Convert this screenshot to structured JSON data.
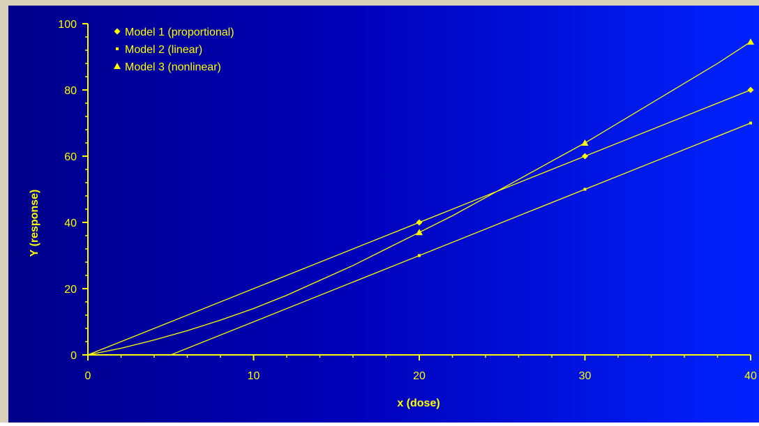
{
  "colors": {
    "line": "#ffff00",
    "background_left": "#00008a",
    "background_right": "#0022ff",
    "frame": "#d8d0b8"
  },
  "chart_data": {
    "type": "line",
    "title": "",
    "xlabel": "x (dose)",
    "ylabel": "Y (response)",
    "xlim": [
      0,
      40
    ],
    "ylim": [
      0,
      100
    ],
    "xticks": [
      0,
      10,
      20,
      30,
      40
    ],
    "yticks": [
      0,
      20,
      40,
      60,
      80,
      100
    ],
    "grid": false,
    "legend_position": "top-left",
    "series": [
      {
        "name": "Model 1 (proportional)",
        "marker": "diamond",
        "x": [
          20,
          30,
          40
        ],
        "y": [
          40,
          60,
          80
        ],
        "curve_x": [
          0,
          40
        ],
        "curve_y": [
          0,
          80
        ]
      },
      {
        "name": "Model 2 (linear)",
        "marker": "square",
        "x": [
          20,
          30,
          40
        ],
        "y": [
          30,
          50,
          70
        ],
        "curve_x": [
          4.5,
          40
        ],
        "curve_y": [
          -1,
          70
        ]
      },
      {
        "name": "Model 3 (nonlinear)",
        "marker": "triangle",
        "x": [
          20,
          30,
          40
        ],
        "y": [
          37,
          64,
          94.5
        ],
        "curve_x": [
          0,
          2,
          4,
          6,
          8,
          10,
          12,
          14,
          16,
          18,
          20,
          22,
          24,
          26,
          28,
          30,
          32,
          34,
          36,
          38,
          40
        ],
        "curve_y": [
          0,
          2,
          4.5,
          7.3,
          10.5,
          14,
          18,
          22.5,
          27,
          32,
          37,
          42,
          47.5,
          53,
          58.5,
          64,
          70,
          76,
          82,
          88,
          94.5
        ]
      }
    ]
  }
}
